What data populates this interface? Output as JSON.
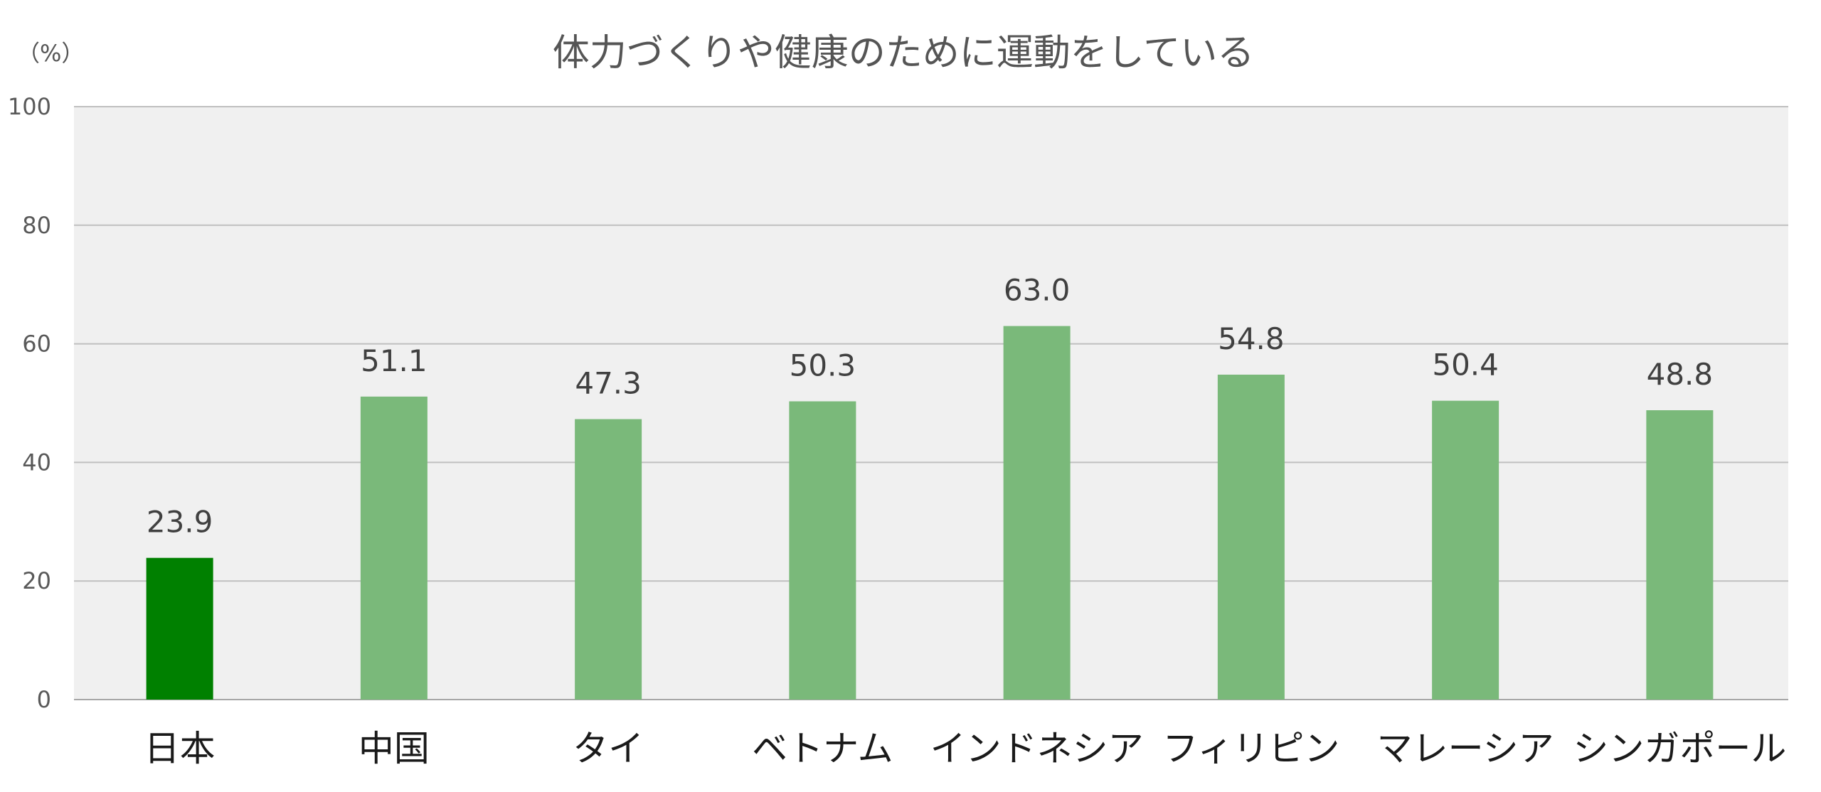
{
  "chart_data": {
    "type": "bar",
    "title": "体力づくりや健康のために運動をしている",
    "unit_label": "（%）",
    "xlabel": "",
    "ylabel": "",
    "ylim": [
      0,
      100
    ],
    "yticks": [
      "0",
      "20",
      "40",
      "60",
      "80",
      "100"
    ],
    "grid": true,
    "categories": [
      "日本",
      "中国",
      "タイ",
      "ベトナム",
      "インドネシア",
      "フィリピン",
      "マレーシア",
      "シンガポール"
    ],
    "values": [
      23.9,
      51.1,
      47.3,
      50.3,
      63.0,
      54.8,
      50.4,
      48.8
    ],
    "value_labels": [
      "23.9",
      "51.1",
      "47.3",
      "50.3",
      "63.0",
      "54.8",
      "50.4",
      "48.8"
    ],
    "colors": {
      "highlight": "#008000",
      "bar": "#7ab97a",
      "plot_background": "#f0f0f0",
      "gridline": "#bfbfbf"
    },
    "highlight_index": 0
  }
}
